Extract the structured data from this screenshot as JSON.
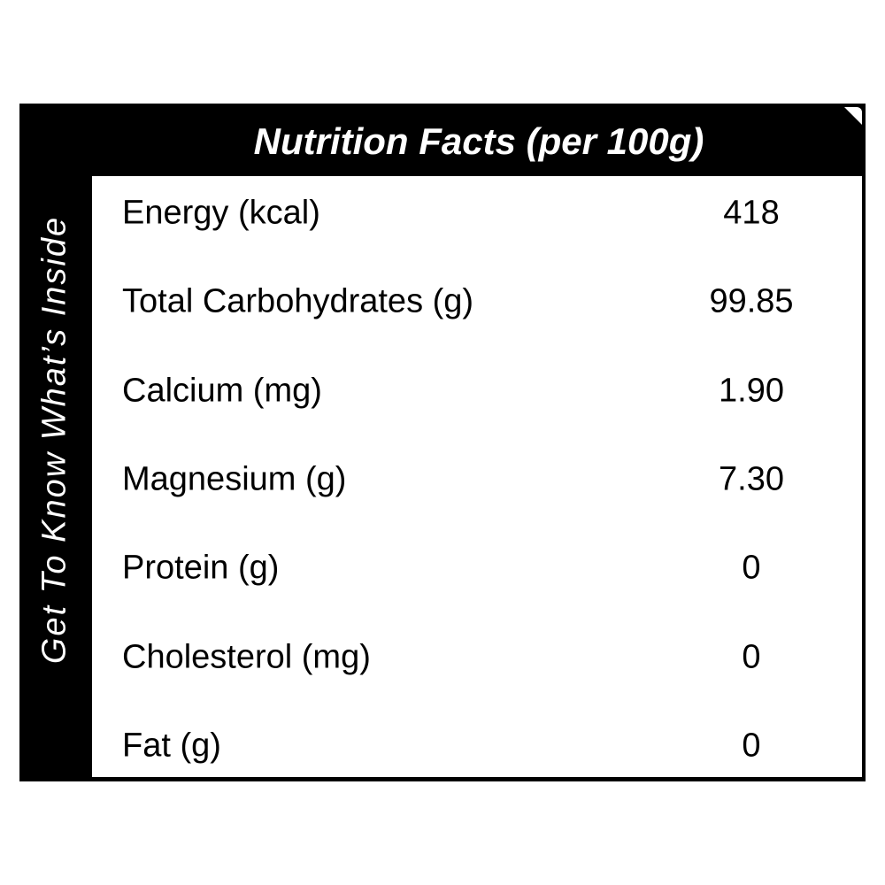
{
  "side_text": "Get To Know What’s Inside",
  "header": {
    "title": "Nutrition Facts (per 100g)"
  },
  "rows": [
    {
      "nutrient": "Energy (kcal)",
      "amount": "418"
    },
    {
      "nutrient": "Total Carbohydrates (g)",
      "amount": "99.85"
    },
    {
      "nutrient": "Calcium (mg)",
      "amount": "1.90"
    },
    {
      "nutrient": "Magnesium (g)",
      "amount": "7.30"
    },
    {
      "nutrient": "Protein (g)",
      "amount": "0"
    },
    {
      "nutrient": "Cholesterol (mg)",
      "amount": "0"
    },
    {
      "nutrient": "Fat (g)",
      "amount": "0"
    }
  ],
  "colors": {
    "frame": "#000000",
    "panel": "#ffffff",
    "text_dark": "#000000",
    "text_light": "#ffffff"
  }
}
